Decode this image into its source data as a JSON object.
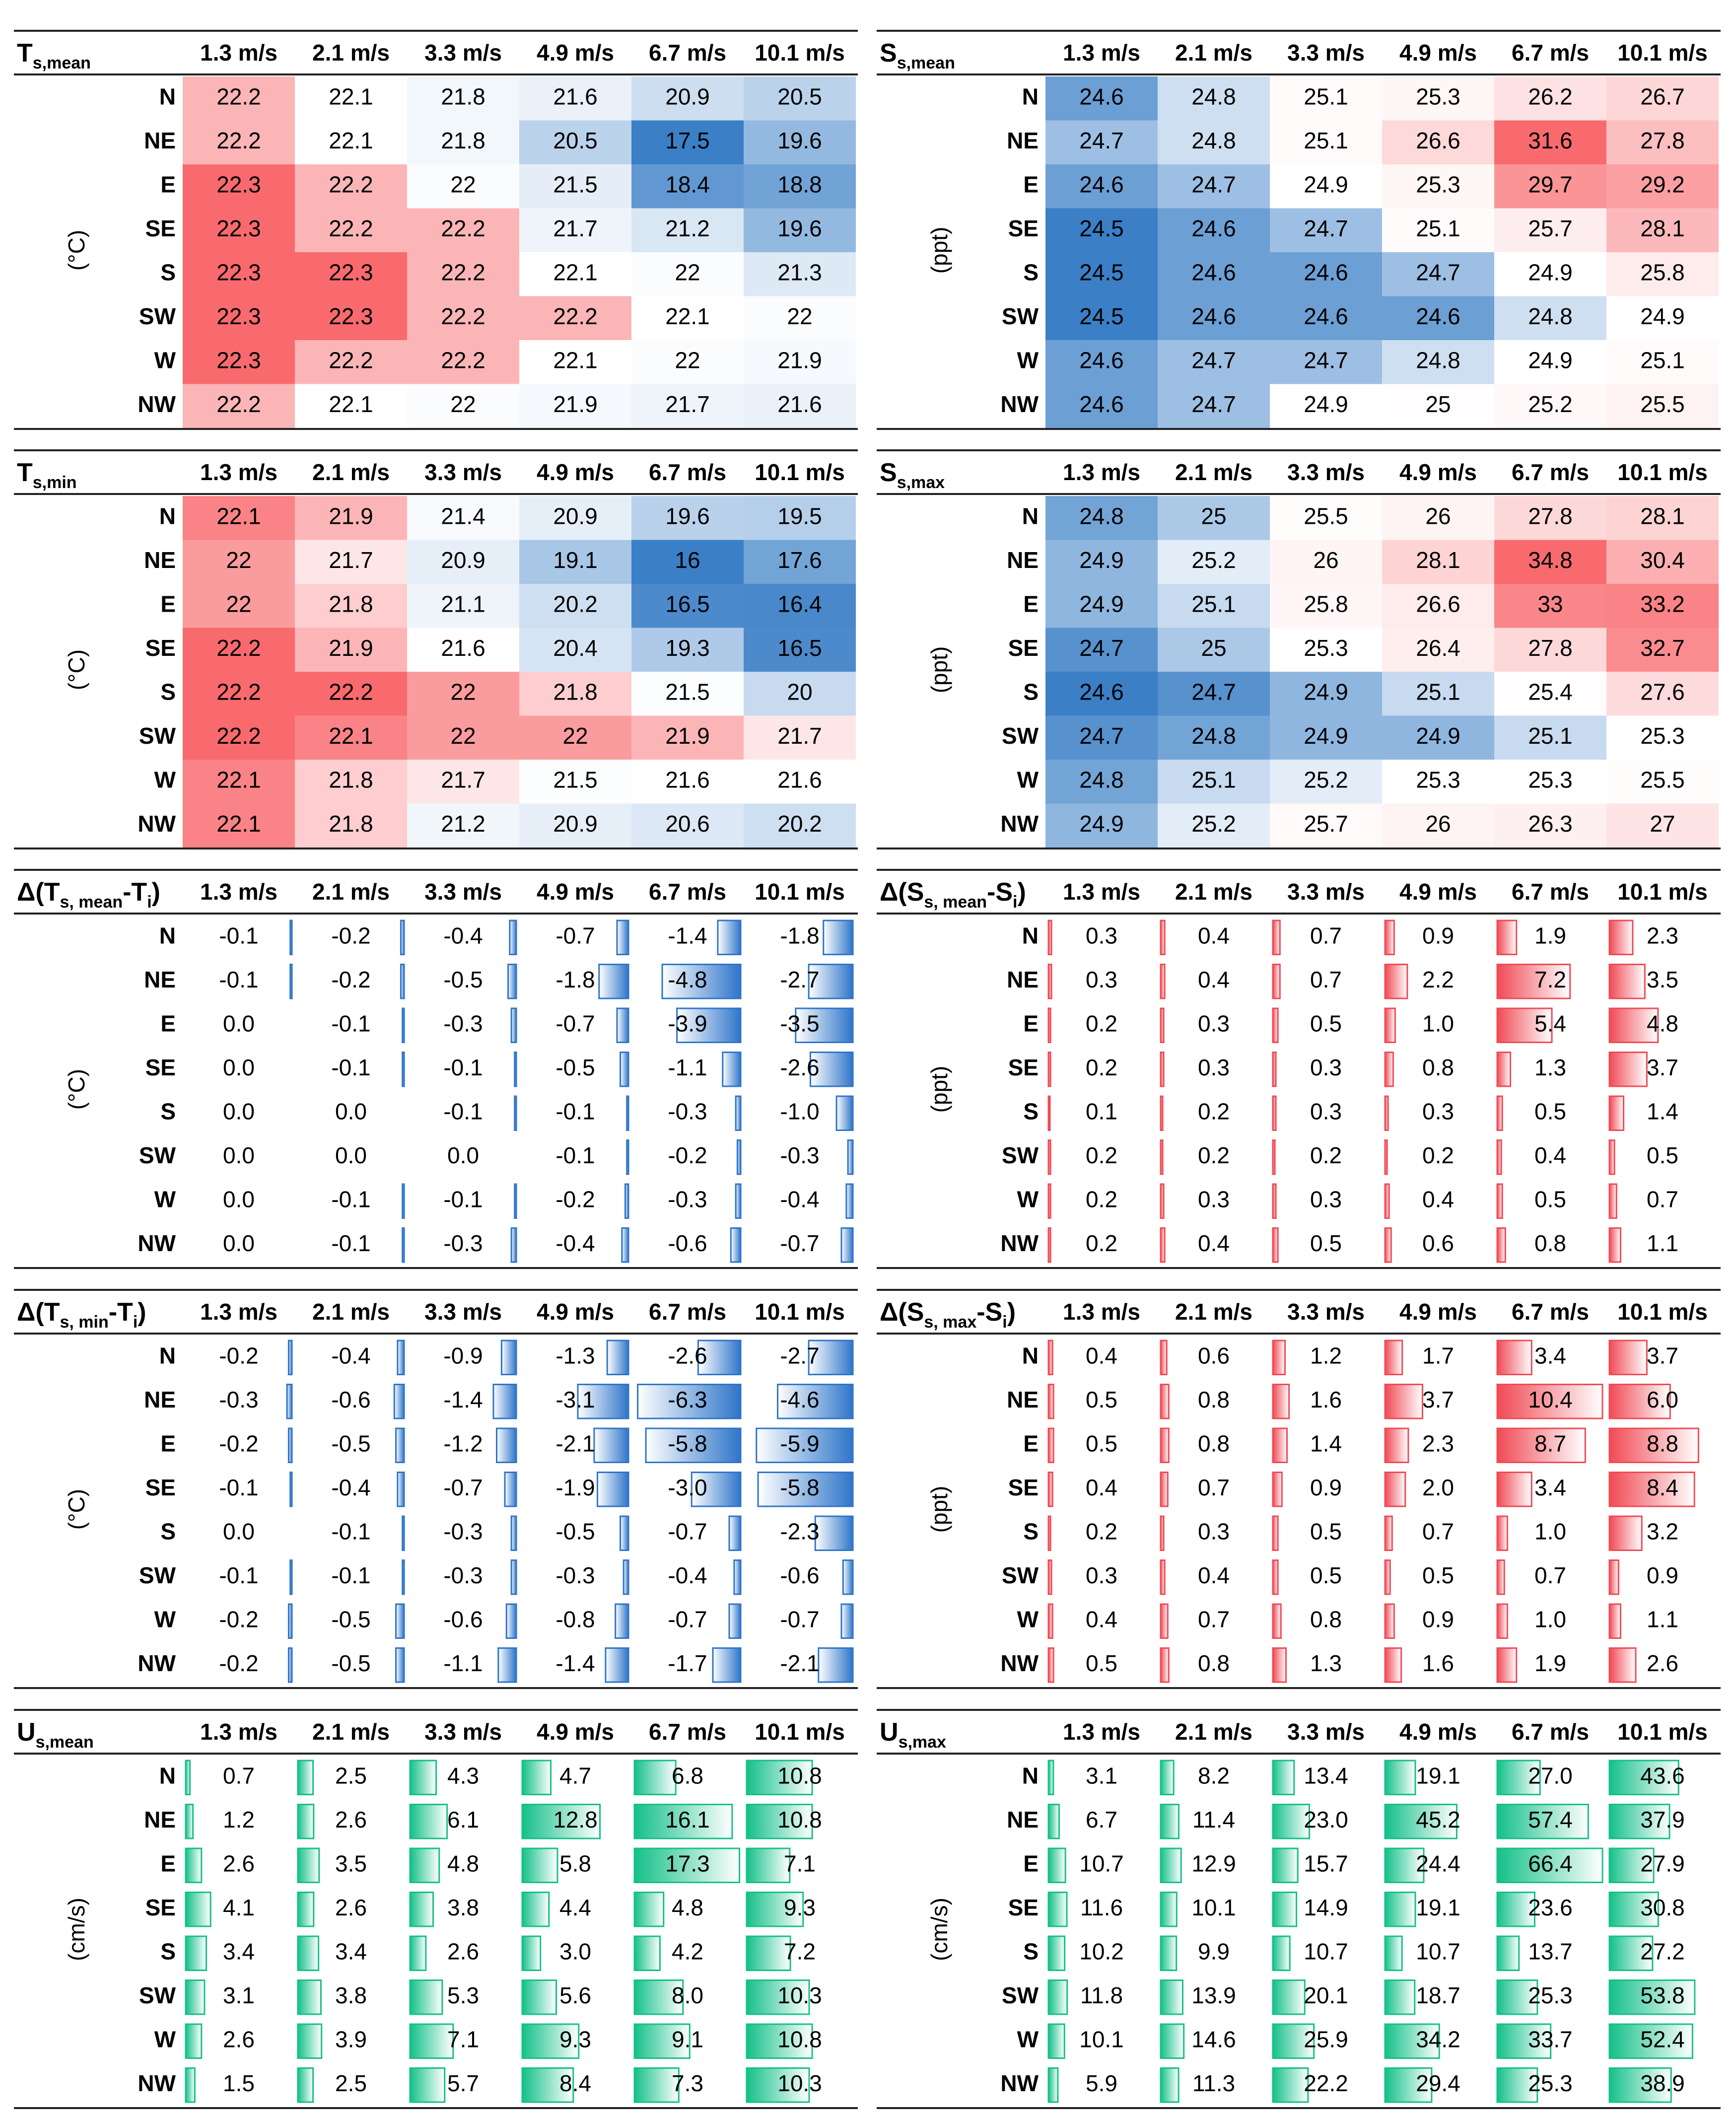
{
  "column_headers": [
    "1.3 m/s",
    "2.1 m/s",
    "3.3 m/s",
    "4.9 m/s",
    "6.7 m/s",
    "10.1 m/s"
  ],
  "directions": [
    "N",
    "NE",
    "E",
    "SE",
    "S",
    "SW",
    "W",
    "NW"
  ],
  "colors": {
    "warm": "#f86a6e",
    "cool": "#3b7fc6",
    "bar_blue": "#2e75c9",
    "bar_red": "#f04a55",
    "bar_green": "#14c089",
    "rule": "#222222"
  },
  "chart_data": [
    {
      "type": "table",
      "style": "heatmap",
      "title": "T",
      "title_sub": "s,mean",
      "unit": "(°C)",
      "values": [
        [
          22.2,
          22.1,
          21.8,
          21.6,
          20.9,
          20.5
        ],
        [
          22.2,
          22.1,
          21.8,
          20.5,
          17.5,
          19.6
        ],
        [
          22.3,
          22.2,
          22.0,
          21.5,
          18.4,
          18.8
        ],
        [
          22.3,
          22.2,
          22.2,
          21.7,
          21.2,
          19.6
        ],
        [
          22.3,
          22.3,
          22.2,
          22.1,
          22.0,
          21.3
        ],
        [
          22.3,
          22.3,
          22.2,
          22.2,
          22.1,
          22.0
        ],
        [
          22.3,
          22.2,
          22.2,
          22.1,
          22.0,
          21.9
        ],
        [
          22.2,
          22.1,
          22.0,
          21.9,
          21.7,
          21.6
        ]
      ]
    },
    {
      "type": "table",
      "style": "heatmap",
      "title": "S",
      "title_sub": "s,mean",
      "unit": "(ppt)",
      "values": [
        [
          24.6,
          24.8,
          25.1,
          25.3,
          26.2,
          26.7
        ],
        [
          24.7,
          24.8,
          25.1,
          26.6,
          31.6,
          27.8
        ],
        [
          24.6,
          24.7,
          24.9,
          25.3,
          29.7,
          29.2
        ],
        [
          24.5,
          24.6,
          24.7,
          25.1,
          25.7,
          28.1
        ],
        [
          24.5,
          24.6,
          24.6,
          24.7,
          24.9,
          25.8
        ],
        [
          24.5,
          24.6,
          24.6,
          24.6,
          24.8,
          24.9
        ],
        [
          24.6,
          24.7,
          24.7,
          24.8,
          24.9,
          25.1
        ],
        [
          24.6,
          24.7,
          24.9,
          25.0,
          25.2,
          25.5
        ]
      ]
    },
    {
      "type": "table",
      "style": "heatmap",
      "title": "T",
      "title_sub": "s,min",
      "unit": "(°C)",
      "values": [
        [
          22.1,
          21.9,
          21.4,
          20.9,
          19.6,
          19.5
        ],
        [
          22.0,
          21.7,
          20.9,
          19.1,
          16.0,
          17.6
        ],
        [
          22.0,
          21.8,
          21.1,
          20.2,
          16.5,
          16.4
        ],
        [
          22.2,
          21.9,
          21.6,
          20.4,
          19.3,
          16.5
        ],
        [
          22.2,
          22.2,
          22.0,
          21.8,
          21.5,
          20.0
        ],
        [
          22.2,
          22.1,
          22.0,
          22.0,
          21.9,
          21.7
        ],
        [
          22.1,
          21.8,
          21.7,
          21.5,
          21.6,
          21.6
        ],
        [
          22.1,
          21.8,
          21.2,
          20.9,
          20.6,
          20.2
        ]
      ]
    },
    {
      "type": "table",
      "style": "heatmap",
      "title": "S",
      "title_sub": "s,max",
      "unit": "(ppt)",
      "values": [
        [
          24.8,
          25.0,
          25.5,
          26.0,
          27.8,
          28.1
        ],
        [
          24.9,
          25.2,
          26.0,
          28.1,
          34.8,
          30.4
        ],
        [
          24.9,
          25.1,
          25.8,
          26.6,
          33.0,
          33.2
        ],
        [
          24.7,
          25.0,
          25.3,
          26.4,
          27.8,
          32.7
        ],
        [
          24.6,
          24.7,
          24.9,
          25.1,
          25.4,
          27.6
        ],
        [
          24.7,
          24.8,
          24.9,
          24.9,
          25.1,
          25.3
        ],
        [
          24.8,
          25.1,
          25.2,
          25.3,
          25.3,
          25.5
        ],
        [
          24.9,
          25.2,
          25.7,
          26.0,
          26.3,
          27.0
        ]
      ]
    },
    {
      "type": "table",
      "style": "bars",
      "title": "Δ(T",
      "title_sub": "s, mean",
      "title_tail": "-T",
      "title_sub2": "i",
      "title_close": ")",
      "unit": "(°C)",
      "bar_color": "blue",
      "bar_max": 6.5,
      "values": [
        [
          "-0.1",
          "-0.2",
          "-0.4",
          "-0.7",
          "-1.4",
          "-1.8"
        ],
        [
          "-0.1",
          "-0.2",
          "-0.5",
          "-1.8",
          "-4.8",
          "-2.7"
        ],
        [
          "0.0",
          "-0.1",
          "-0.3",
          "-0.7",
          "-3.9",
          "-3.5"
        ],
        [
          "0.0",
          "-0.1",
          "-0.1",
          "-0.5",
          "-1.1",
          "-2.6"
        ],
        [
          "0.0",
          "0.0",
          "-0.1",
          "-0.1",
          "-0.3",
          "-1.0"
        ],
        [
          "0.0",
          "0.0",
          "0.0",
          "-0.1",
          "-0.2",
          "-0.3"
        ],
        [
          "0.0",
          "-0.1",
          "-0.1",
          "-0.2",
          "-0.3",
          "-0.4"
        ],
        [
          "0.0",
          "-0.1",
          "-0.3",
          "-0.4",
          "-0.6",
          "-0.7"
        ]
      ]
    },
    {
      "type": "table",
      "style": "bars",
      "title": "Δ(S",
      "title_sub": "s, mean",
      "title_tail": "-S",
      "title_sub2": "i",
      "title_close": ")",
      "unit": "(ppt)",
      "bar_color": "red",
      "bar_max": 10.5,
      "values": [
        [
          "0.3",
          "0.4",
          "0.7",
          "0.9",
          "1.9",
          "2.3"
        ],
        [
          "0.3",
          "0.4",
          "0.7",
          "2.2",
          "7.2",
          "3.5"
        ],
        [
          "0.2",
          "0.3",
          "0.5",
          "1.0",
          "5.4",
          "4.8"
        ],
        [
          "0.2",
          "0.3",
          "0.3",
          "0.8",
          "1.3",
          "3.7"
        ],
        [
          "0.1",
          "0.2",
          "0.3",
          "0.3",
          "0.5",
          "1.4"
        ],
        [
          "0.2",
          "0.2",
          "0.2",
          "0.2",
          "0.4",
          "0.5"
        ],
        [
          "0.2",
          "0.3",
          "0.3",
          "0.4",
          "0.5",
          "0.7"
        ],
        [
          "0.2",
          "0.4",
          "0.5",
          "0.6",
          "0.8",
          "1.1"
        ]
      ]
    },
    {
      "type": "table",
      "style": "bars",
      "title": "Δ(T",
      "title_sub": "s, min",
      "title_tail": "-T",
      "title_sub2": "i",
      "title_close": ")",
      "unit": "(°C)",
      "bar_color": "blue",
      "bar_max": 6.5,
      "values": [
        [
          "-0.2",
          "-0.4",
          "-0.9",
          "-1.3",
          "-2.6",
          "-2.7"
        ],
        [
          "-0.3",
          "-0.6",
          "-1.4",
          "-3.1",
          "-6.3",
          "-4.6"
        ],
        [
          "-0.2",
          "-0.5",
          "-1.2",
          "-2.1",
          "-5.8",
          "-5.9"
        ],
        [
          "-0.1",
          "-0.4",
          "-0.7",
          "-1.9",
          "-3.0",
          "-5.8"
        ],
        [
          "0.0",
          "-0.1",
          "-0.3",
          "-0.5",
          "-0.7",
          "-2.3"
        ],
        [
          "-0.1",
          "-0.1",
          "-0.3",
          "-0.3",
          "-0.4",
          "-0.6"
        ],
        [
          "-0.2",
          "-0.5",
          "-0.6",
          "-0.8",
          "-0.7",
          "-0.7"
        ],
        [
          "-0.2",
          "-0.5",
          "-1.1",
          "-1.4",
          "-1.7",
          "-2.1"
        ]
      ]
    },
    {
      "type": "table",
      "style": "bars",
      "title": "Δ(S",
      "title_sub": "s, max",
      "title_tail": "-S",
      "title_sub2": "i",
      "title_close": ")",
      "unit": "(ppt)",
      "bar_color": "red",
      "bar_max": 10.5,
      "values": [
        [
          "0.4",
          "0.6",
          "1.2",
          "1.7",
          "3.4",
          "3.7"
        ],
        [
          "0.5",
          "0.8",
          "1.6",
          "3.7",
          "10.4",
          "6.0"
        ],
        [
          "0.5",
          "0.8",
          "1.4",
          "2.3",
          "8.7",
          "8.8"
        ],
        [
          "0.4",
          "0.7",
          "0.9",
          "2.0",
          "3.4",
          "8.4"
        ],
        [
          "0.2",
          "0.3",
          "0.5",
          "0.7",
          "1.0",
          "3.2"
        ],
        [
          "0.3",
          "0.4",
          "0.5",
          "0.5",
          "0.7",
          "0.9"
        ],
        [
          "0.4",
          "0.7",
          "0.8",
          "0.9",
          "1.0",
          "1.1"
        ],
        [
          "0.5",
          "0.8",
          "1.3",
          "1.6",
          "1.9",
          "2.6"
        ]
      ]
    },
    {
      "type": "table",
      "style": "bars",
      "title": "U",
      "title_sub": "s,mean",
      "unit": "(cm/s)",
      "bar_color": "green",
      "bar_max": 17.5,
      "values": [
        [
          "0.7",
          "2.5",
          "4.3",
          "4.7",
          "6.8",
          "10.8"
        ],
        [
          "1.2",
          "2.6",
          "6.1",
          "12.8",
          "16.1",
          "10.8"
        ],
        [
          "2.6",
          "3.5",
          "4.8",
          "5.8",
          "17.3",
          "7.1"
        ],
        [
          "4.1",
          "2.6",
          "3.8",
          "4.4",
          "4.8",
          "9.3"
        ],
        [
          "3.4",
          "3.4",
          "2.6",
          "3.0",
          "4.2",
          "7.2"
        ],
        [
          "3.1",
          "3.8",
          "5.3",
          "5.6",
          "8.0",
          "10.3"
        ],
        [
          "2.6",
          "3.9",
          "7.1",
          "9.3",
          "9.1",
          "10.8"
        ],
        [
          "1.5",
          "2.5",
          "5.7",
          "8.4",
          "7.3",
          "10.3"
        ]
      ]
    },
    {
      "type": "table",
      "style": "bars",
      "title": "U",
      "title_sub": "s,max",
      "unit": "(cm/s)",
      "bar_color": "green",
      "bar_max": 67,
      "values": [
        [
          "3.1",
          "8.2",
          "13.4",
          "19.1",
          "27.0",
          "43.6"
        ],
        [
          "6.7",
          "11.4",
          "23.0",
          "45.2",
          "57.4",
          "37.9"
        ],
        [
          "10.7",
          "12.9",
          "15.7",
          "24.4",
          "66.4",
          "27.9"
        ],
        [
          "11.6",
          "10.1",
          "14.9",
          "19.1",
          "23.6",
          "30.8"
        ],
        [
          "10.2",
          "9.9",
          "10.7",
          "10.7",
          "13.7",
          "27.2"
        ],
        [
          "11.8",
          "13.9",
          "20.1",
          "18.7",
          "25.3",
          "53.8"
        ],
        [
          "10.1",
          "14.6",
          "25.9",
          "34.2",
          "33.7",
          "52.4"
        ],
        [
          "5.9",
          "11.3",
          "22.2",
          "29.4",
          "25.3",
          "38.9"
        ]
      ]
    }
  ]
}
